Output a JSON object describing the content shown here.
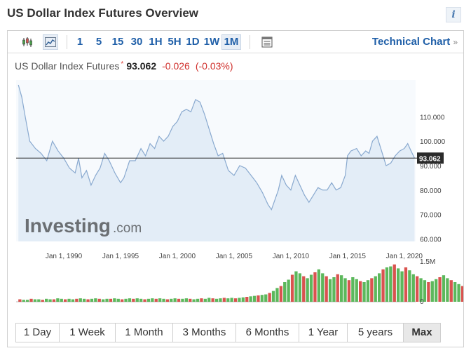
{
  "header": {
    "title": "US Dollar Index Futures Overview",
    "info_icon": "i"
  },
  "toolbar": {
    "chart_type_icons": [
      "candlestick-icon",
      "area-chart-icon"
    ],
    "intervals": [
      "1",
      "5",
      "15",
      "30",
      "1H",
      "5H",
      "1D",
      "1W",
      "1M"
    ],
    "selected_interval": "1M",
    "settings_icon": "settings-icon",
    "technical_chart_label": "Technical Chart",
    "technical_chart_chevron": "»"
  },
  "quote": {
    "name": "US Dollar Index Futures",
    "marker": "*",
    "price": "93.062",
    "change": "-0.026",
    "change_pct": "(-0.03%)"
  },
  "chart_data": {
    "type": "area",
    "x": [
      1986.0,
      1986.3,
      1986.6,
      1987.0,
      1987.5,
      1988.0,
      1988.5,
      1989.0,
      1989.5,
      1990.0,
      1990.5,
      1991.0,
      1991.3,
      1991.6,
      1992.0,
      1992.4,
      1992.8,
      1993.2,
      1993.6,
      1994.0,
      1994.5,
      1995.0,
      1995.3,
      1995.8,
      1996.3,
      1996.8,
      1997.2,
      1997.6,
      1998.0,
      1998.4,
      1998.8,
      1999.2,
      1999.6,
      2000.0,
      2000.4,
      2000.8,
      2001.2,
      2001.6,
      2002.0,
      2002.4,
      2002.8,
      2003.2,
      2003.6,
      2004.0,
      2004.5,
      2005.0,
      2005.5,
      2006.0,
      2006.5,
      2007.0,
      2007.5,
      2008.0,
      2008.3,
      2008.6,
      2008.9,
      2009.2,
      2009.6,
      2010.0,
      2010.4,
      2010.8,
      2011.2,
      2011.6,
      2012.0,
      2012.4,
      2012.8,
      2013.2,
      2013.6,
      2014.0,
      2014.4,
      2014.8,
      2015.0,
      2015.3,
      2015.8,
      2016.2,
      2016.6,
      2016.9,
      2017.2,
      2017.6,
      2018.0,
      2018.4,
      2018.8,
      2019.2,
      2019.6,
      2020.0,
      2020.3,
      2020.6,
      2020.9
    ],
    "values": [
      123,
      118,
      110,
      100,
      97,
      95,
      92,
      100,
      96,
      93,
      89,
      87,
      93,
      85,
      88,
      82,
      86,
      89,
      95,
      92,
      87,
      83,
      85,
      92,
      92,
      97,
      94,
      99,
      97,
      102,
      100,
      102,
      106,
      108,
      112,
      113,
      112,
      117,
      116,
      111,
      105,
      99,
      94,
      95,
      88,
      86,
      90,
      89,
      86,
      83,
      79,
      74,
      72,
      76,
      80,
      86,
      82,
      80,
      86,
      82,
      78,
      75,
      78,
      81,
      80,
      80,
      83,
      80,
      81,
      86,
      94,
      96,
      97,
      94,
      96,
      95,
      100,
      102,
      96,
      90,
      91,
      94,
      96,
      97,
      99,
      96,
      93.062
    ],
    "xticks": [
      "Jan 1, 1990",
      "Jan 1, 1995",
      "Jan 1, 2000",
      "Jan 1, 2005",
      "Jan 1, 2010",
      "Jan 1, 2015",
      "Jan 1, 2020"
    ],
    "xtick_years": [
      1990,
      1995,
      2000,
      2005,
      2010,
      2015,
      2020
    ],
    "yticks": [
      "110.000",
      "100.000",
      "90.000",
      "80.000",
      "70.000",
      "60.000"
    ],
    "ytick_values": [
      110,
      100,
      90,
      80,
      70,
      60
    ],
    "ylim": [
      59,
      125
    ],
    "xlim": [
      1985.8,
      2021.0
    ],
    "current_price_label": "93.062",
    "current_price": 93.062,
    "volume": {
      "yticks": [
        "1.5M",
        "0"
      ],
      "max": 1500000,
      "start_year": 1986,
      "bars_per_year": 3,
      "values": [
        5,
        4,
        4,
        6,
        5,
        5,
        4,
        6,
        5,
        5,
        7,
        6,
        5,
        6,
        5,
        6,
        7,
        6,
        5,
        6,
        7,
        6,
        5,
        6,
        6,
        7,
        6,
        5,
        6,
        7,
        6,
        7,
        6,
        5,
        6,
        7,
        6,
        7,
        6,
        5,
        6,
        7,
        6,
        6,
        7,
        6,
        5,
        6,
        7,
        6,
        8,
        7,
        6,
        7,
        8,
        7,
        8,
        7,
        8,
        9,
        10,
        11,
        12,
        13,
        14,
        15,
        18,
        22,
        28,
        32,
        40,
        45,
        55,
        62,
        58,
        52,
        48,
        55,
        60,
        66,
        58,
        52,
        46,
        50,
        56,
        54,
        48,
        44,
        50,
        46,
        42,
        40,
        44,
        48,
        52,
        58,
        66,
        70,
        72,
        76,
        68,
        62,
        70,
        64,
        56,
        52,
        48,
        44,
        40,
        42,
        46,
        50,
        54,
        48,
        44,
        40,
        36,
        32,
        38,
        42,
        46,
        40,
        36,
        34,
        38,
        30,
        28,
        32,
        26
      ],
      "colors": {
        "up": "#5cb85c",
        "down": "#d9534f"
      }
    }
  },
  "logo": {
    "text": "Investing",
    "suffix": ".com"
  },
  "ranges": [
    "1 Day",
    "1 Week",
    "1 Month",
    "3 Months",
    "6 Months",
    "1 Year",
    "5 years",
    "Max"
  ],
  "selected_range": "Max",
  "colors": {
    "accent": "#1f5fa8",
    "line": "#89a9cf",
    "area": "#e3edf7",
    "negative": "#d0312d",
    "price_tag": "#2b2b2b"
  }
}
